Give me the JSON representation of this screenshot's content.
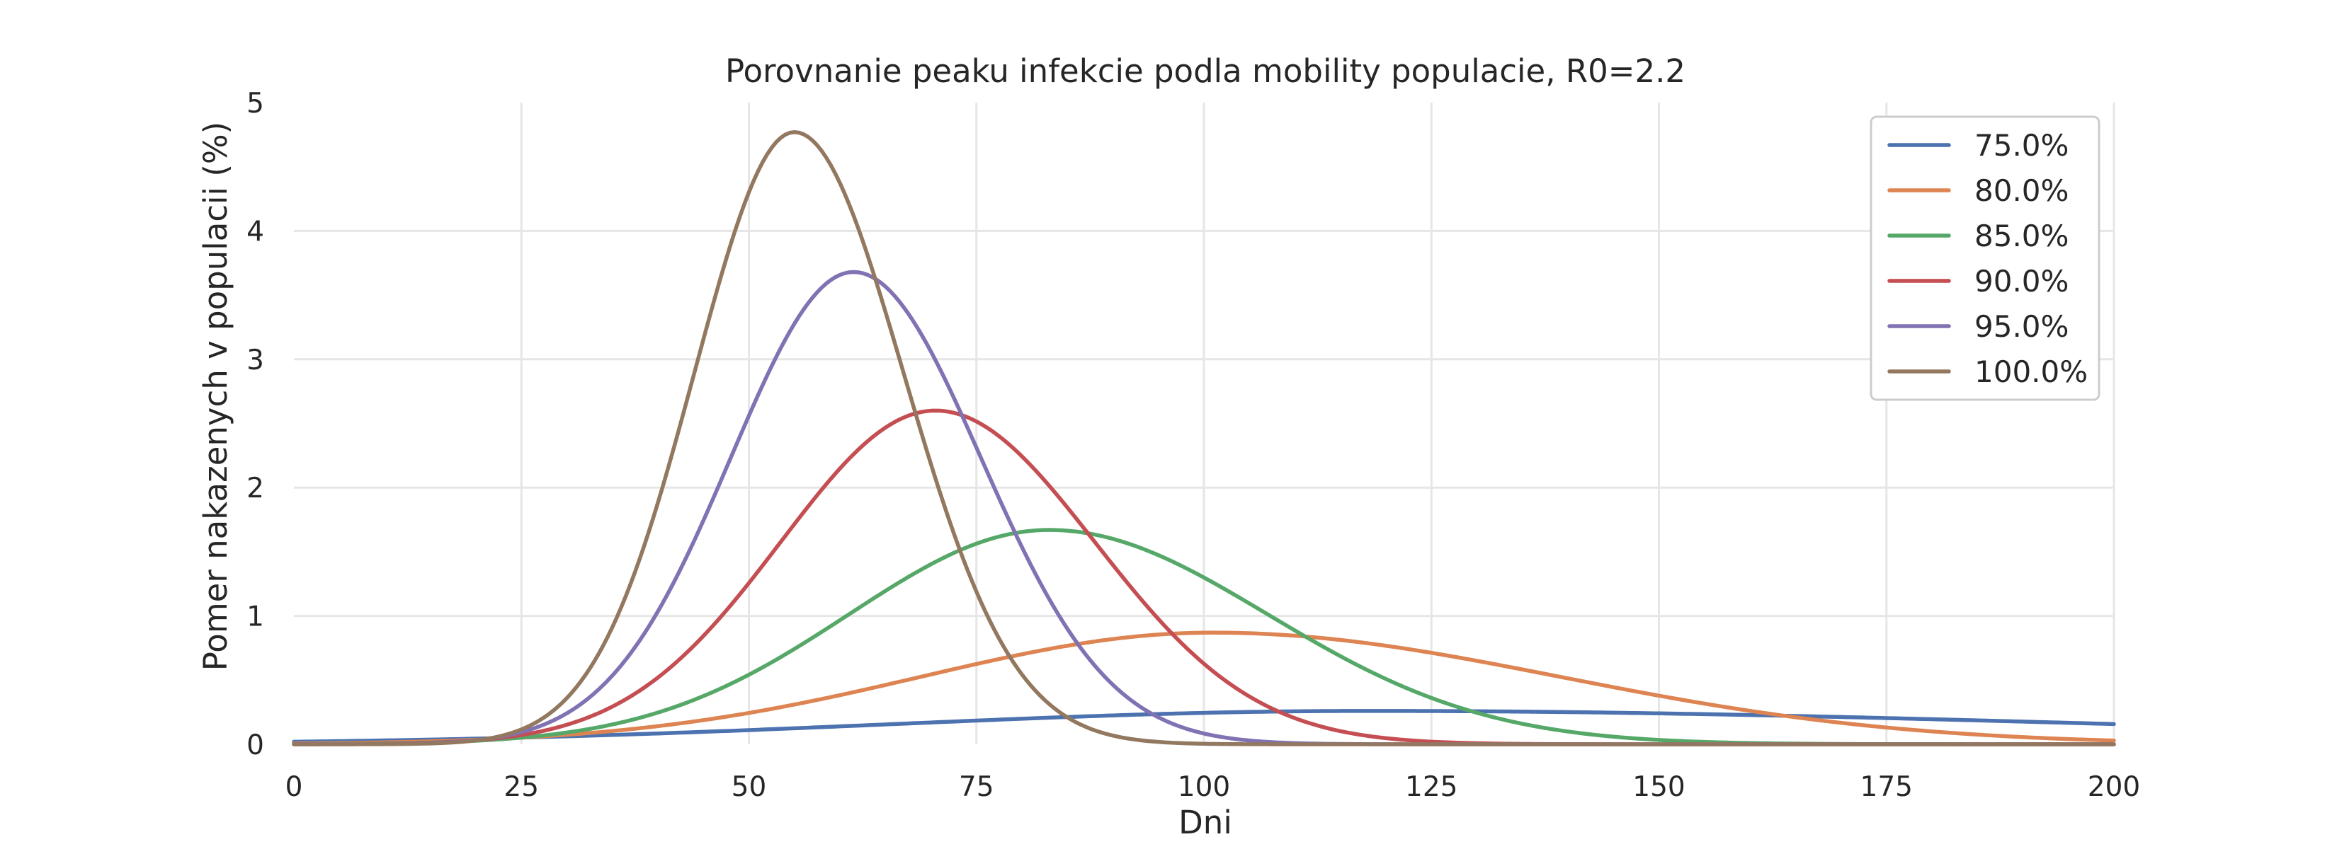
{
  "chart_data": {
    "type": "line",
    "title": "Porovnanie peaku infekcie podla mobility populacie, R0=2.2",
    "xlabel": "Dni",
    "ylabel": "Pomer nakazenych v populacii (%)",
    "xlim": [
      0,
      200
    ],
    "ylim": [
      0,
      5
    ],
    "xticks": [
      0,
      25,
      50,
      75,
      100,
      125,
      150,
      175,
      200
    ],
    "yticks": [
      0,
      1,
      2,
      3,
      4,
      5
    ],
    "grid": true,
    "legend_position": "top-right",
    "series": [
      {
        "name": "75.0%",
        "color": "#4c72b0",
        "peak_x": 118,
        "peak_y": 0.26,
        "sigma_left": 52,
        "sigma_right": 82,
        "start_y": 0.0
      },
      {
        "name": "80.0%",
        "color": "#dd8452",
        "peak_x": 101,
        "peak_y": 0.87,
        "sigma_left": 32,
        "sigma_right": 38,
        "start_y": 0.0
      },
      {
        "name": "85.0%",
        "color": "#55a868",
        "peak_x": 83,
        "peak_y": 1.67,
        "sigma_left": 22,
        "sigma_right": 24,
        "start_y": 0.0
      },
      {
        "name": "90.0%",
        "color": "#c44e52",
        "peak_x": 70.5,
        "peak_y": 2.6,
        "sigma_left": 17,
        "sigma_right": 17.5,
        "start_y": 0.0
      },
      {
        "name": "95.0%",
        "color": "#8172b3",
        "peak_x": 61.5,
        "peak_y": 3.68,
        "sigma_left": 13.5,
        "sigma_right": 14,
        "start_y": 0.0
      },
      {
        "name": "100.0%",
        "color": "#937860",
        "peak_x": 55,
        "peak_y": 4.77,
        "sigma_left": 11,
        "sigma_right": 12,
        "start_y": 0.0
      }
    ]
  }
}
